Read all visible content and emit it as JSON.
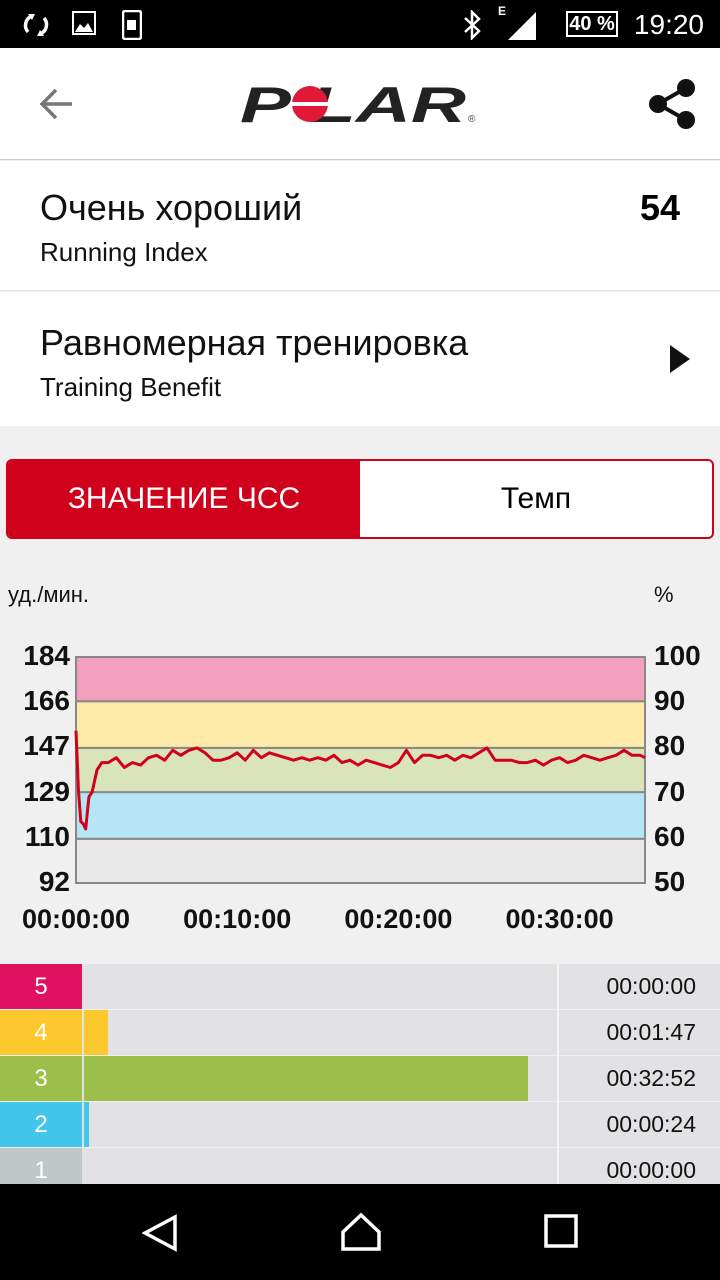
{
  "status_bar": {
    "time": "19:20",
    "battery": "40 %",
    "network": "E",
    "icons": [
      "sync-icon",
      "image-icon",
      "phone-icon",
      "bluetooth-icon",
      "signal-icon",
      "battery-icon"
    ]
  },
  "app_bar": {
    "logo": "POLAR",
    "icons": [
      "back-arrow-icon",
      "share-icon"
    ]
  },
  "running_index": {
    "title": "Очень хороший",
    "subtitle": "Running Index",
    "value": "54"
  },
  "training_benefit": {
    "title": "Равномерная тренировка",
    "subtitle": "Training Benefit"
  },
  "tabs": [
    {
      "label": "ЗНАЧЕНИЕ ЧСС",
      "active": true
    },
    {
      "label": "Темп",
      "active": false
    }
  ],
  "colors": {
    "accent": "#d0021b",
    "zone5": "#e0115f",
    "zone4": "#fdc72e",
    "zone3": "#9cbe4a",
    "zone2": "#42c6ec",
    "zone1": "#bfc8c8"
  },
  "chart_data": {
    "type": "line",
    "ylabel": "уд./мин.",
    "y2label": "%",
    "ylim": [
      92,
      184
    ],
    "y2lim": [
      50,
      100
    ],
    "yticks": [
      "184",
      "166",
      "147",
      "129",
      "110",
      "92"
    ],
    "y2ticks": [
      "100",
      "90",
      "80",
      "70",
      "60",
      "50"
    ],
    "xticks": [
      "00:00:00",
      "00:10:00",
      "00:20:00",
      "00:30:00"
    ],
    "xlim_minutes": [
      0,
      35.3
    ],
    "zone_bands": [
      {
        "from": 92,
        "to": 110,
        "color": "#e8e8e8"
      },
      {
        "from": 110,
        "to": 129,
        "color": "#b5e6f5"
      },
      {
        "from": 129,
        "to": 147,
        "color": "#dae4bb"
      },
      {
        "from": 147,
        "to": 166,
        "color": "#fdeaa8"
      },
      {
        "from": 166,
        "to": 184,
        "color": "#f2a0bd"
      }
    ],
    "series": [
      {
        "color": "#d0021b",
        "x": [
          0,
          0.15,
          0.3,
          0.45,
          0.6,
          0.8,
          1.0,
          1.3,
          1.6,
          2.0,
          2.5,
          3.0,
          3.5,
          4.0,
          4.5,
          5.0,
          5.5,
          6.0,
          6.5,
          7.0,
          7.5,
          8.0,
          8.5,
          9.0,
          9.5,
          10.0,
          10.5,
          11.0,
          11.5,
          12.0,
          12.5,
          13.0,
          13.5,
          14.0,
          14.5,
          15.0,
          15.5,
          16.0,
          16.5,
          17.0,
          17.5,
          18.0,
          18.5,
          19.0,
          19.5,
          20.0,
          20.5,
          21.0,
          21.5,
          22.0,
          22.5,
          23.0,
          23.5,
          24.0,
          24.5,
          25.0,
          25.5,
          26.0,
          26.5,
          27.0,
          27.5,
          28.0,
          28.5,
          29.0,
          29.5,
          30.0,
          30.5,
          31.0,
          31.5,
          32.0,
          32.5,
          33.0,
          33.5,
          34.0,
          34.5,
          35.0,
          35.3
        ],
        "y": [
          154,
          130,
          117,
          116,
          114,
          127,
          129,
          138,
          141,
          141,
          143,
          139,
          141,
          140,
          143,
          144,
          142,
          146,
          144,
          146,
          147,
          145,
          142,
          142,
          143,
          145,
          142,
          146,
          143,
          145,
          144,
          143,
          142,
          143,
          142,
          143,
          142,
          144,
          141,
          142,
          140,
          142,
          141,
          140,
          139,
          141,
          146,
          141,
          144,
          144,
          143,
          144,
          142,
          144,
          143,
          145,
          147,
          142,
          142,
          142,
          141,
          141,
          142,
          140,
          142,
          143,
          141,
          142,
          144,
          143,
          142,
          143,
          144,
          146,
          144,
          144,
          143
        ]
      }
    ]
  },
  "zones": [
    {
      "label": "5",
      "time": "00:00:00",
      "seconds": 0
    },
    {
      "label": "4",
      "time": "00:01:47",
      "seconds": 107
    },
    {
      "label": "3",
      "time": "00:32:52",
      "seconds": 1972
    },
    {
      "label": "2",
      "time": "00:00:24",
      "seconds": 24
    },
    {
      "label": "1",
      "time": "00:00:00",
      "seconds": 0
    }
  ],
  "nav_bar": {
    "icons": [
      "back-triangle-icon",
      "home-icon",
      "recents-icon"
    ]
  }
}
